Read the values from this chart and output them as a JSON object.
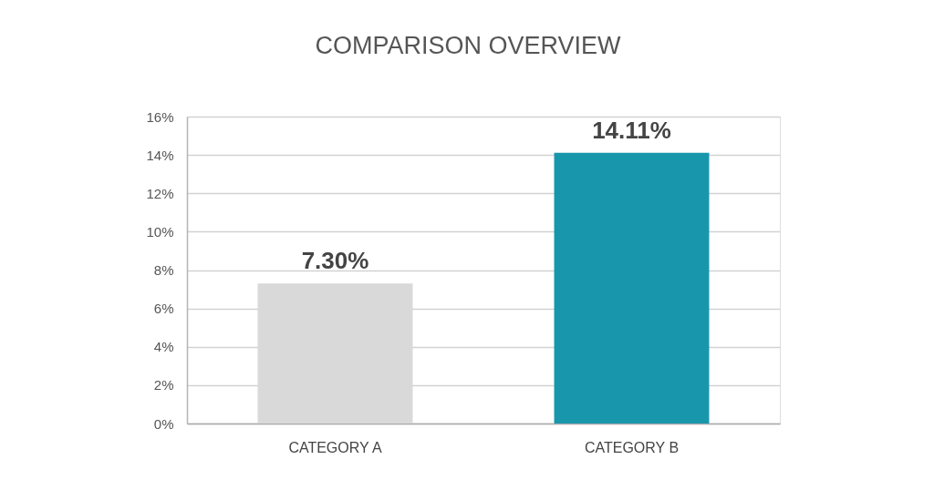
{
  "chart_data": {
    "type": "bar",
    "title": "COMPARISON OVERVIEW",
    "categories": [
      "CATEGORY A",
      "CATEGORY B"
    ],
    "values": [
      7.3,
      14.11
    ],
    "colors": [
      "#d9d9d9",
      "#1897ac"
    ],
    "value_labels": [
      "7.30%",
      "14.11%"
    ],
    "ylim": [
      0,
      16
    ],
    "yticks": [
      {
        "value": 0,
        "label": "0%"
      },
      {
        "value": 2,
        "label": "2%"
      },
      {
        "value": 4,
        "label": "4%"
      },
      {
        "value": 6,
        "label": "6%"
      },
      {
        "value": 8,
        "label": "8%"
      },
      {
        "value": 10,
        "label": "10%"
      },
      {
        "value": 12,
        "label": "12%"
      },
      {
        "value": 14,
        "label": "14%"
      },
      {
        "value": 16,
        "label": "16%"
      }
    ],
    "grid": "y"
  }
}
